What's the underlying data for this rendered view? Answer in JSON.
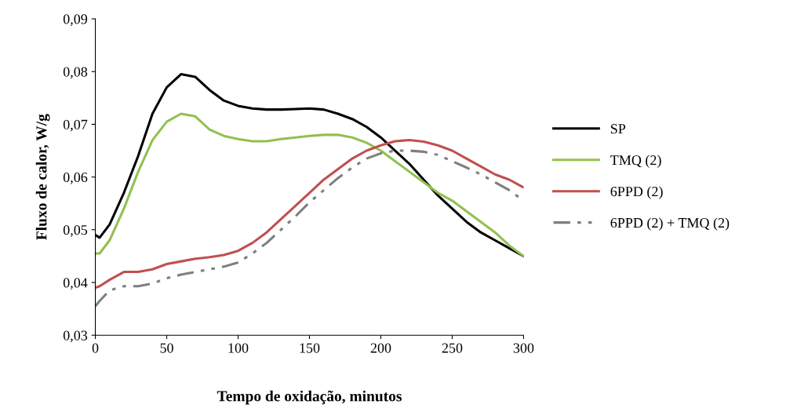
{
  "chart_data": {
    "type": "line",
    "xlabel": "Tempo de oxidação, minutos",
    "ylabel": "Fluxo de calor, W/g",
    "xlim": [
      0,
      300
    ],
    "xticks": [
      0,
      50,
      100,
      150,
      200,
      250,
      300
    ],
    "ylim": [
      0.03,
      0.09
    ],
    "yticks": [
      {
        "value": 0.03,
        "label": "0,03"
      },
      {
        "value": 0.04,
        "label": "0,04"
      },
      {
        "value": 0.05,
        "label": "0,05"
      },
      {
        "value": 0.06,
        "label": "0,06"
      },
      {
        "value": 0.07,
        "label": "0,07"
      },
      {
        "value": 0.08,
        "label": "0,08"
      },
      {
        "value": 0.09,
        "label": "0,09"
      }
    ],
    "grid": false,
    "legend": "right",
    "marker": "none",
    "x": [
      0,
      3,
      10,
      20,
      30,
      40,
      50,
      60,
      70,
      80,
      90,
      100,
      110,
      120,
      130,
      140,
      150,
      160,
      170,
      180,
      190,
      200,
      210,
      220,
      230,
      240,
      250,
      260,
      270,
      280,
      290,
      300
    ],
    "series": [
      {
        "name": "SP",
        "color": "#000000",
        "line_style": "solid",
        "values": [
          0.049,
          0.0485,
          0.051,
          0.057,
          0.064,
          0.072,
          0.077,
          0.0795,
          0.079,
          0.0765,
          0.0745,
          0.0735,
          0.073,
          0.0728,
          0.0728,
          0.0729,
          0.073,
          0.0728,
          0.072,
          0.071,
          0.0695,
          0.0675,
          0.065,
          0.0625,
          0.0595,
          0.0565,
          0.054,
          0.0515,
          0.0495,
          0.048,
          0.0465,
          0.045
        ]
      },
      {
        "name": "TMQ (2)",
        "color": "#92c050",
        "line_style": "solid",
        "values": [
          0.0455,
          0.0455,
          0.048,
          0.054,
          0.061,
          0.067,
          0.0705,
          0.072,
          0.0715,
          0.069,
          0.0678,
          0.0672,
          0.0668,
          0.0668,
          0.0672,
          0.0675,
          0.0678,
          0.068,
          0.068,
          0.0675,
          0.0665,
          0.065,
          0.063,
          0.061,
          0.059,
          0.057,
          0.0555,
          0.0535,
          0.0515,
          0.0495,
          0.047,
          0.045
        ]
      },
      {
        "name": "6PPD (2)",
        "color": "#c0504d",
        "line_style": "solid",
        "values": [
          0.039,
          0.0393,
          0.0405,
          0.042,
          0.042,
          0.0425,
          0.0435,
          0.044,
          0.0445,
          0.0448,
          0.0452,
          0.046,
          0.0475,
          0.0495,
          0.052,
          0.0545,
          0.057,
          0.0595,
          0.0615,
          0.0635,
          0.065,
          0.066,
          0.0668,
          0.067,
          0.0667,
          0.066,
          0.065,
          0.0635,
          0.062,
          0.0605,
          0.0595,
          0.058
        ]
      },
      {
        "name": "6PPD (2) + TMQ (2)",
        "color": "#7f7f7f",
        "line_style": "dashdot",
        "values": [
          0.0355,
          0.0365,
          0.0385,
          0.0393,
          0.0393,
          0.0398,
          0.0408,
          0.0415,
          0.042,
          0.0425,
          0.043,
          0.0438,
          0.0455,
          0.0475,
          0.05,
          0.0525,
          0.0552,
          0.0575,
          0.0598,
          0.0618,
          0.0635,
          0.0645,
          0.065,
          0.065,
          0.0648,
          0.0642,
          0.063,
          0.0618,
          0.0605,
          0.059,
          0.0575,
          0.0555
        ]
      }
    ]
  }
}
